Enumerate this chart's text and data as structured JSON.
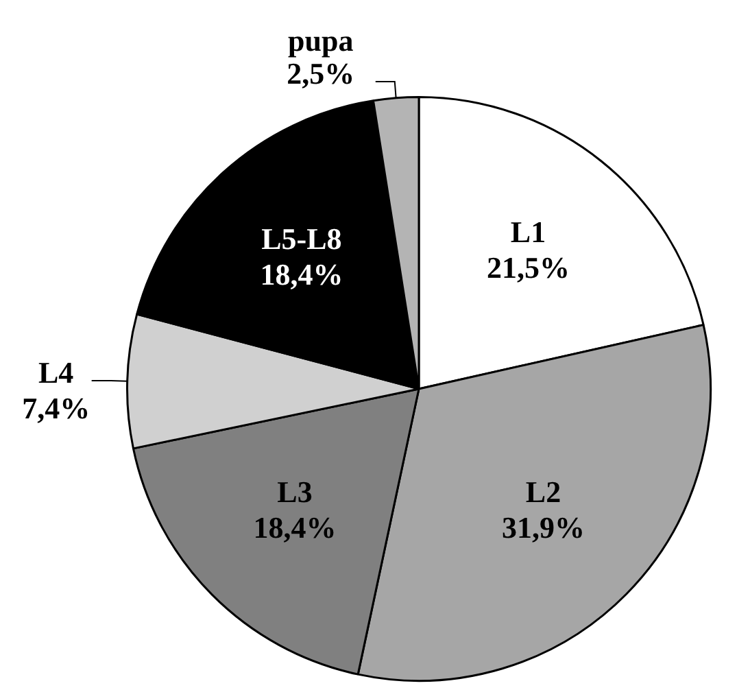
{
  "chart_data": {
    "type": "pie",
    "categories": [
      "L1",
      "L2",
      "L3",
      "L4",
      "L5-L8",
      "pupa"
    ],
    "values": [
      21.5,
      31.9,
      18.4,
      7.4,
      18.4,
      2.5
    ],
    "colors": [
      "#ffffff",
      "#a6a6a6",
      "#808080",
      "#d0d0d0",
      "#000000",
      "#b4b4b4"
    ],
    "value_labels": [
      "21,5%",
      "31,9%",
      "18,4%",
      "7,4%",
      "18,4%",
      "2,5%"
    ],
    "legend": false
  }
}
